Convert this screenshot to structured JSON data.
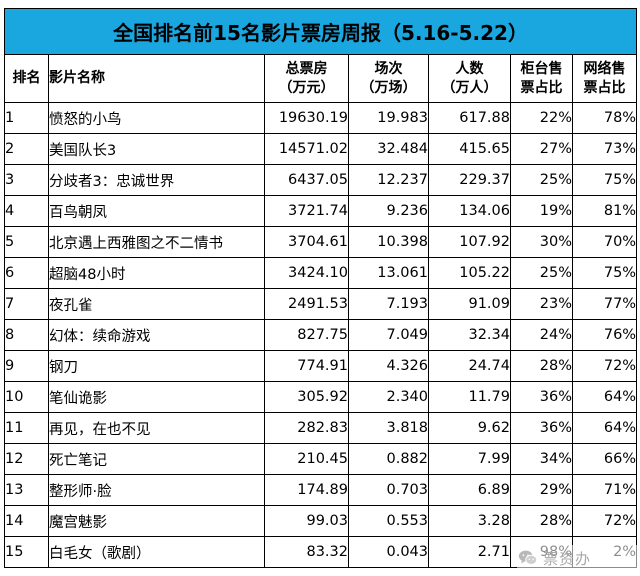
{
  "title": "全国排名前15名影片票房周报（5.16-5.22）",
  "headers": {
    "rank": "排名",
    "name": "影片名称",
    "box_office": [
      "总票房",
      "（万元）"
    ],
    "screenings": [
      "场次",
      "（万场）"
    ],
    "admissions": [
      "人数",
      "（万人）"
    ],
    "counter_share": [
      "柜台售",
      "票占比"
    ],
    "online_share": [
      "网络售",
      "票占比"
    ]
  },
  "rows": [
    {
      "rank": "1",
      "name": "愤怒的小鸟",
      "box_office": "19630.19",
      "screenings": "19.983",
      "admissions": "617.88",
      "counter": "22%",
      "online": "78%"
    },
    {
      "rank": "2",
      "name": "美国队长3",
      "box_office": "14571.02",
      "screenings": "32.484",
      "admissions": "415.65",
      "counter": "27%",
      "online": "73%"
    },
    {
      "rank": "3",
      "name": "分歧者3：忠诚世界",
      "box_office": "6437.05",
      "screenings": "12.237",
      "admissions": "229.37",
      "counter": "25%",
      "online": "75%"
    },
    {
      "rank": "4",
      "name": "百鸟朝凤",
      "box_office": "3721.74",
      "screenings": "9.236",
      "admissions": "134.06",
      "counter": "19%",
      "online": "81%"
    },
    {
      "rank": "5",
      "name": "北京遇上西雅图之不二情书",
      "box_office": "3704.61",
      "screenings": "10.398",
      "admissions": "107.92",
      "counter": "30%",
      "online": "70%"
    },
    {
      "rank": "6",
      "name": "超脑48小时",
      "box_office": "3424.10",
      "screenings": "13.061",
      "admissions": "105.22",
      "counter": "25%",
      "online": "75%"
    },
    {
      "rank": "7",
      "name": "夜孔雀",
      "box_office": "2491.53",
      "screenings": "7.193",
      "admissions": "91.09",
      "counter": "23%",
      "online": "77%"
    },
    {
      "rank": "8",
      "name": "幻体：续命游戏",
      "box_office": "827.75",
      "screenings": "7.049",
      "admissions": "32.34",
      "counter": "24%",
      "online": "76%"
    },
    {
      "rank": "9",
      "name": "钢刀",
      "box_office": "774.91",
      "screenings": "4.326",
      "admissions": "24.74",
      "counter": "28%",
      "online": "72%"
    },
    {
      "rank": "10",
      "name": "笔仙诡影",
      "box_office": "305.92",
      "screenings": "2.340",
      "admissions": "11.79",
      "counter": "36%",
      "online": "64%"
    },
    {
      "rank": "11",
      "name": "再见，在也不见",
      "box_office": "282.83",
      "screenings": "3.818",
      "admissions": "9.62",
      "counter": "36%",
      "online": "64%"
    },
    {
      "rank": "12",
      "name": "死亡笔记",
      "box_office": "210.45",
      "screenings": "0.882",
      "admissions": "7.99",
      "counter": "34%",
      "online": "66%"
    },
    {
      "rank": "13",
      "name": "整形师·脸",
      "box_office": "174.89",
      "screenings": "0.703",
      "admissions": "6.89",
      "counter": "29%",
      "online": "71%"
    },
    {
      "rank": "14",
      "name": "魔宫魅影",
      "box_office": "99.03",
      "screenings": "0.553",
      "admissions": "3.28",
      "counter": "28%",
      "online": "72%"
    },
    {
      "rank": "15",
      "name": "白毛女（歌剧）",
      "box_office": "83.32",
      "screenings": "0.043",
      "admissions": "2.71",
      "counter": "98%",
      "online": "2%"
    }
  ],
  "watermark": {
    "text": "票资办",
    "icon": "wechat-icon"
  }
}
